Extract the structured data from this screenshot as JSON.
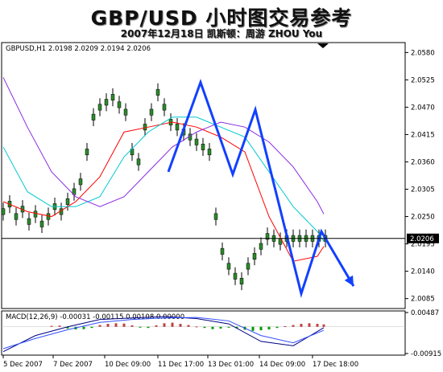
{
  "header": {
    "title": "GBP/USD 小时图交易参考",
    "subtitle": "2007年12月18日  凯斯顿：周游 ZHOU You"
  },
  "chart_data": [
    {
      "type": "line",
      "panel": "price",
      "info_label": "GBPUSD,H1  2.0198 2.0209 2.0194 2.0206",
      "current_price_label": "2.0206",
      "current_price": 2.0206,
      "y_ticks": [
        "2.0580",
        "2.0525",
        "2.0470",
        "2.0415",
        "2.0360",
        "2.0305",
        "2.0250",
        "2.0195",
        "2.0140",
        "2.0085"
      ],
      "ylim": [
        2.0065,
        2.06
      ],
      "x_tick_labels": [
        "5 Dec 2007",
        "7 Dec 2007",
        "10 Dec 09:00",
        "11 Dec 17:00",
        "13 Dec 01:00",
        "14 Dec 09:00",
        "17 Dec 18:00"
      ],
      "grid": false,
      "series": [
        {
          "kind": "price-close",
          "color": "#000000",
          "x": [
            0,
            8,
            16,
            24,
            32,
            40,
            48,
            56,
            64,
            72,
            80,
            88,
            96,
            104,
            112,
            120,
            128,
            136,
            144,
            152,
            160,
            168,
            176,
            184,
            192,
            200,
            208,
            216,
            224,
            232,
            240,
            248,
            256,
            264,
            272,
            280,
            288,
            296,
            304,
            312,
            320,
            328,
            336,
            344,
            352,
            360,
            368,
            376,
            384,
            392,
            400
          ],
          "y": [
            2.026,
            2.0275,
            2.025,
            2.0265,
            2.024,
            2.0255,
            2.0235,
            2.025,
            2.027,
            2.026,
            2.028,
            2.03,
            2.032,
            2.038,
            2.045,
            2.047,
            2.048,
            2.049,
            2.0475,
            2.046,
            2.038,
            2.036,
            2.043,
            2.046,
            2.05,
            2.047,
            2.044,
            2.043,
            2.042,
            2.041,
            2.04,
            2.039,
            2.038,
            2.025,
            2.018,
            2.015,
            2.013,
            2.012,
            2.015,
            2.017,
            2.019,
            2.021,
            2.0206,
            2.02,
            2.0206,
            2.0206,
            2.0206,
            2.0206,
            2.0206,
            2.0206,
            2.0206
          ]
        },
        {
          "kind": "moving-average",
          "color": "#ff0000",
          "x": [
            0,
            30,
            60,
            90,
            120,
            150,
            180,
            210,
            240,
            270,
            300,
            330,
            360,
            390,
            398
          ],
          "y": [
            2.028,
            2.026,
            2.025,
            2.028,
            2.033,
            2.042,
            2.043,
            2.044,
            2.043,
            2.041,
            2.038,
            2.025,
            2.016,
            2.017,
            2.019
          ]
        },
        {
          "kind": "moving-average",
          "color": "#00c8d0",
          "x": [
            0,
            30,
            60,
            90,
            120,
            150,
            180,
            210,
            240,
            270,
            300,
            330,
            360,
            390,
            398
          ],
          "y": [
            2.039,
            2.03,
            2.027,
            2.027,
            2.029,
            2.037,
            2.042,
            2.045,
            2.045,
            2.043,
            2.041,
            2.034,
            2.027,
            2.022,
            2.02
          ]
        },
        {
          "kind": "moving-average",
          "color": "#8a2be2",
          "x": [
            0,
            30,
            60,
            90,
            120,
            150,
            180,
            210,
            240,
            270,
            300,
            330,
            360,
            390,
            398
          ],
          "y": [
            2.053,
            2.043,
            2.034,
            2.029,
            2.027,
            2.029,
            2.034,
            2.039,
            2.042,
            2.044,
            2.043,
            2.04,
            2.035,
            2.028,
            2.0255
          ]
        },
        {
          "kind": "annotation-path",
          "color": "#1240ff",
          "x": [
            205,
            245,
            285,
            313,
            370,
            395,
            435
          ],
          "y": [
            2.034,
            2.052,
            2.0335,
            2.0465,
            2.0095,
            2.022,
            2.011
          ]
        }
      ]
    },
    {
      "type": "bar",
      "panel": "macd",
      "info_label": "MACD(12,26,9) -0.00031 -0.00115 0.00108 0.00000",
      "y_ticks": [
        "0.00487",
        "-0.00915"
      ],
      "ylim": [
        -0.00915,
        0.00487
      ],
      "zero_line": 0,
      "series": [
        {
          "kind": "histogram",
          "color": "#009900",
          "x": [
            60,
            70,
            80,
            90,
            100,
            110,
            120,
            130,
            140,
            150,
            160,
            170,
            180,
            190,
            200,
            210,
            220,
            230,
            240,
            250,
            260,
            270,
            280,
            290,
            300,
            310,
            320,
            330,
            340,
            350,
            360,
            370,
            380,
            390,
            398
          ],
          "y": [
            0.0003,
            0.0004,
            -0.0006,
            -0.0009,
            -0.0008,
            -0.0004,
            0.0006,
            0.001,
            0.0012,
            0.0011,
            0.0005,
            -0.0003,
            -0.0004,
            0.0005,
            0.0012,
            0.0014,
            0.001,
            0.0006,
            0.0001,
            -0.0004,
            -0.0008,
            -0.0006,
            -0.0003,
            -0.0005,
            -0.001,
            -0.0014,
            -0.0012,
            -0.0009,
            -0.0004,
            0.0002,
            0.0006,
            0.001,
            0.0012,
            0.001,
            0.0008
          ]
        },
        {
          "kind": "macd-line",
          "color": "#000080",
          "x": [
            0,
            40,
            80,
            120,
            160,
            200,
            240,
            280,
            320,
            360,
            398
          ],
          "y": [
            -0.0085,
            -0.003,
            0.0,
            0.0025,
            0.003,
            0.0035,
            0.0028,
            0.001,
            -0.005,
            -0.0065,
            -0.0003
          ]
        },
        {
          "kind": "signal-line",
          "color": "#3050ff",
          "x": [
            0,
            40,
            80,
            120,
            160,
            200,
            240,
            280,
            320,
            360,
            398
          ],
          "y": [
            -0.0075,
            -0.004,
            -0.001,
            0.0015,
            0.0025,
            0.003,
            0.0032,
            0.002,
            -0.003,
            -0.0055,
            -0.0012
          ]
        }
      ]
    }
  ]
}
